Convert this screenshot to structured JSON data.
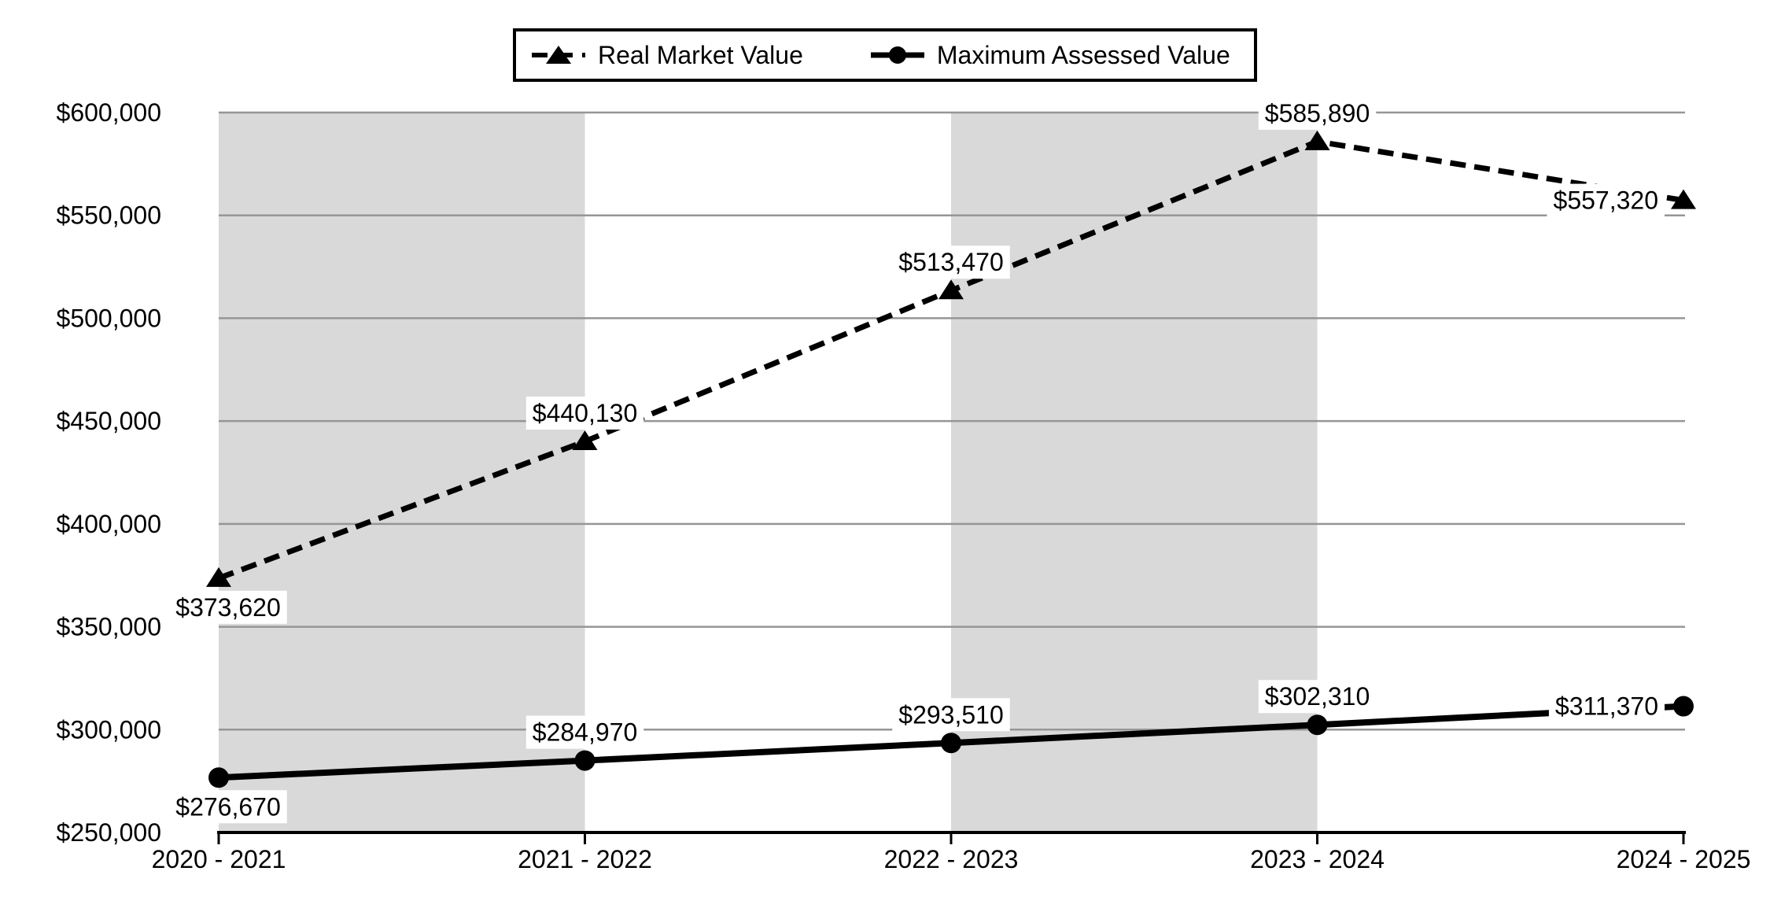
{
  "legend": {
    "items": [
      {
        "label": "Real Market Value",
        "swatch": "dashed-line-triangle-marker"
      },
      {
        "label": "Maximum Assessed Value",
        "swatch": "solid-line-circle-marker"
      }
    ]
  },
  "chart_data": {
    "type": "line",
    "categories": [
      "2020 - 2021",
      "2021 - 2022",
      "2022 - 2023",
      "2023 - 2024",
      "2024 - 2025"
    ],
    "series": [
      {
        "name": "Real Market Value",
        "line_style": "dashed",
        "marker": "triangle",
        "color": "#000000",
        "values": [
          373620,
          440130,
          513470,
          585890,
          557320
        ],
        "data_labels": [
          "$373,620",
          "$440,130",
          "$513,470",
          "$585,890",
          "$557,320"
        ],
        "label_positions": [
          "below",
          "above",
          "above",
          "above",
          "left"
        ]
      },
      {
        "name": "Maximum Assessed Value",
        "line_style": "solid",
        "marker": "circle",
        "color": "#000000",
        "values": [
          276670,
          284970,
          293510,
          302310,
          311370
        ],
        "data_labels": [
          "$276,670",
          "$284,970",
          "$293,510",
          "$302,310",
          "$311,370"
        ],
        "label_positions": [
          "below",
          "above",
          "above",
          "above",
          "left"
        ]
      }
    ],
    "y_axis": {
      "min": 250000,
      "max": 600000,
      "step": 50000,
      "tick_labels": [
        "$250,000",
        "$300,000",
        "$350,000",
        "$400,000",
        "$450,000",
        "$500,000",
        "$550,000",
        "$600,000"
      ]
    },
    "x_axis": {
      "tick_marks": true
    },
    "legend_position": "top",
    "gridlines": true,
    "plot_bands": {
      "intervals": [
        [
          0,
          1
        ],
        [
          2,
          3
        ]
      ]
    },
    "colors": {
      "band": "#d9d9d9",
      "gridline": "#969696",
      "axis": "#000000",
      "text": "#000000",
      "label_background": "#ffffff",
      "background": "#ffffff"
    }
  }
}
